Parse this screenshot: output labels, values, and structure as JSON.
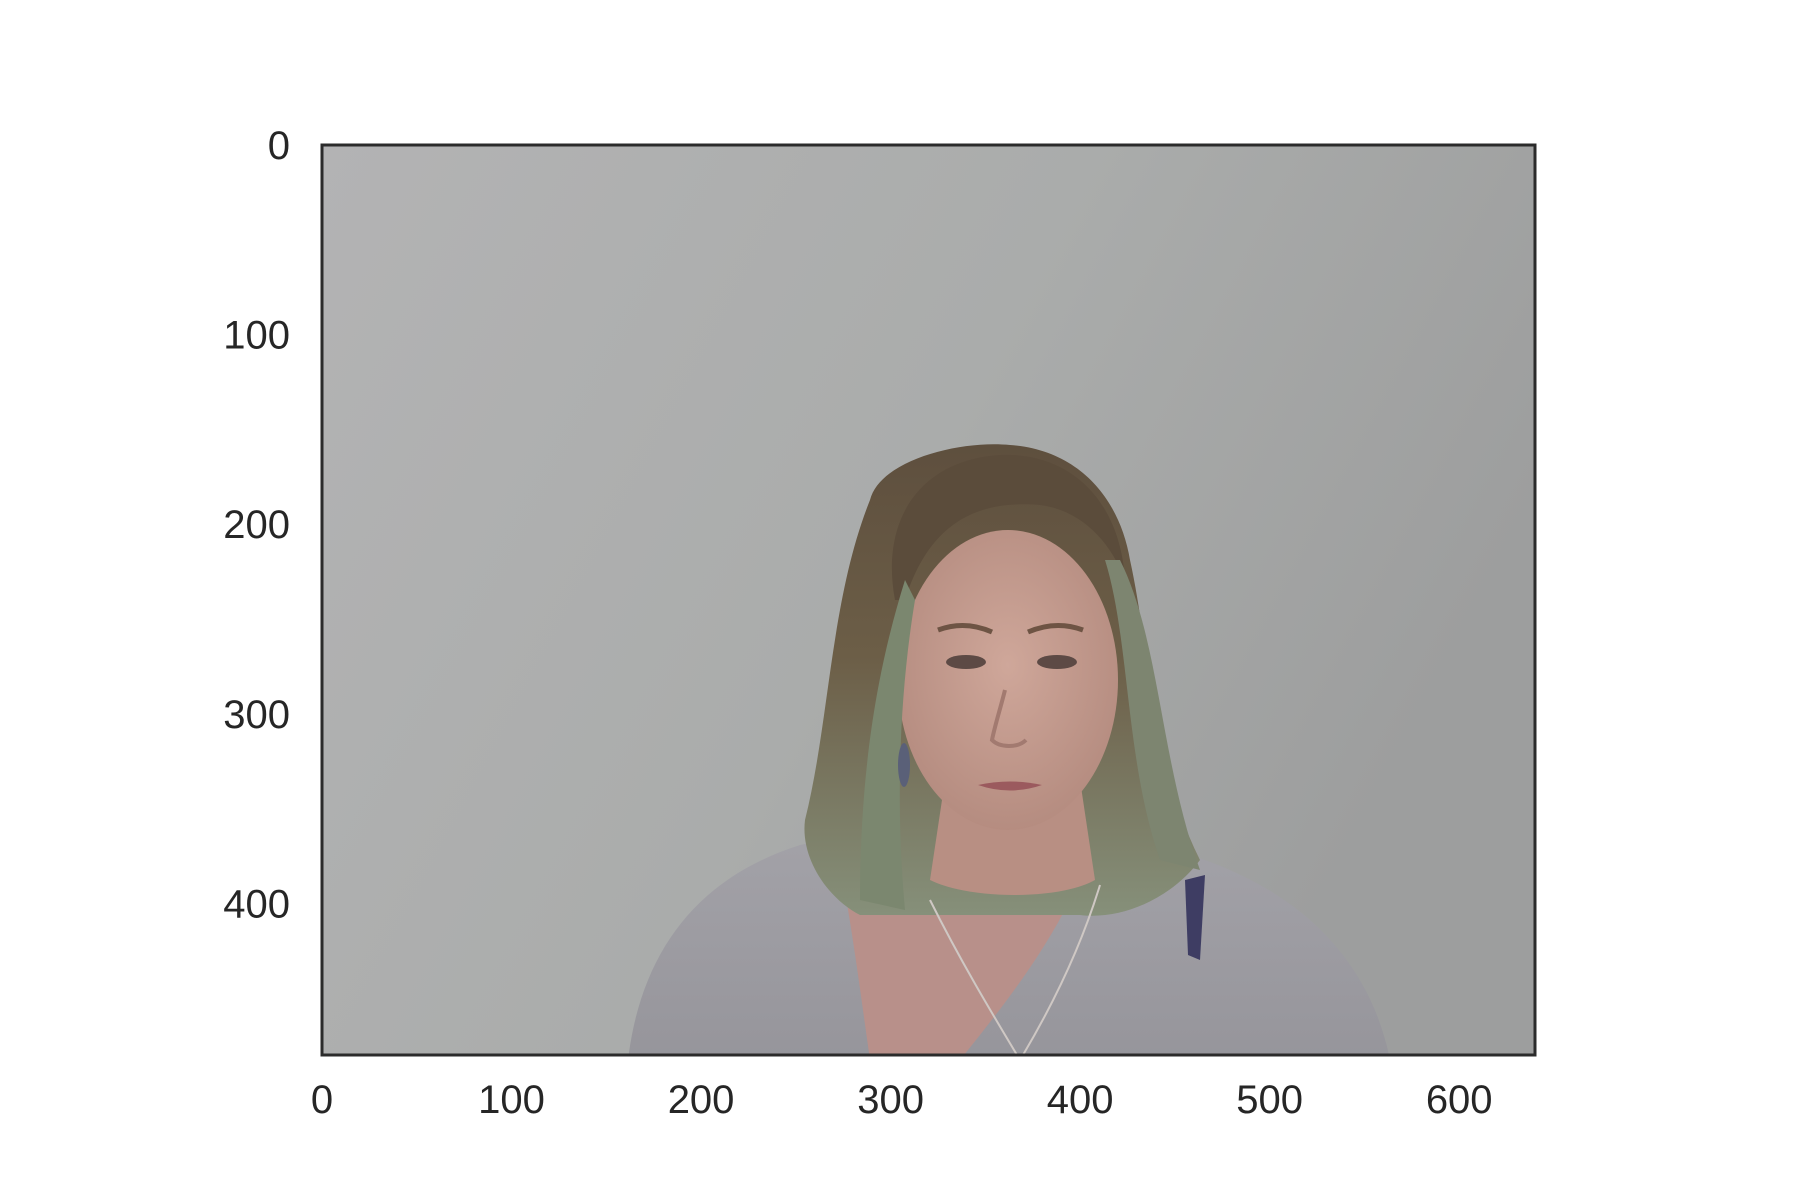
{
  "image": {
    "subject": "person-photo",
    "x_extent": [
      0,
      640
    ],
    "y_extent": [
      0,
      480
    ],
    "y_inverted": true,
    "colors": {
      "wall": "#adadad",
      "hair": "#6b5a45",
      "hair_tips": "#7f8a72",
      "skin": "#c49b8e",
      "sweater": "#9d9ca2",
      "frame": "#2b2b2b"
    }
  },
  "axes": {
    "x_ticks": [
      {
        "value": 0,
        "label": "0"
      },
      {
        "value": 100,
        "label": "100"
      },
      {
        "value": 200,
        "label": "200"
      },
      {
        "value": 300,
        "label": "300"
      },
      {
        "value": 400,
        "label": "400"
      },
      {
        "value": 500,
        "label": "500"
      },
      {
        "value": 600,
        "label": "600"
      }
    ],
    "y_ticks": [
      {
        "value": 0,
        "label": "0"
      },
      {
        "value": 100,
        "label": "100"
      },
      {
        "value": 200,
        "label": "200"
      },
      {
        "value": 300,
        "label": "300"
      },
      {
        "value": 400,
        "label": "400"
      }
    ],
    "grid": false
  }
}
